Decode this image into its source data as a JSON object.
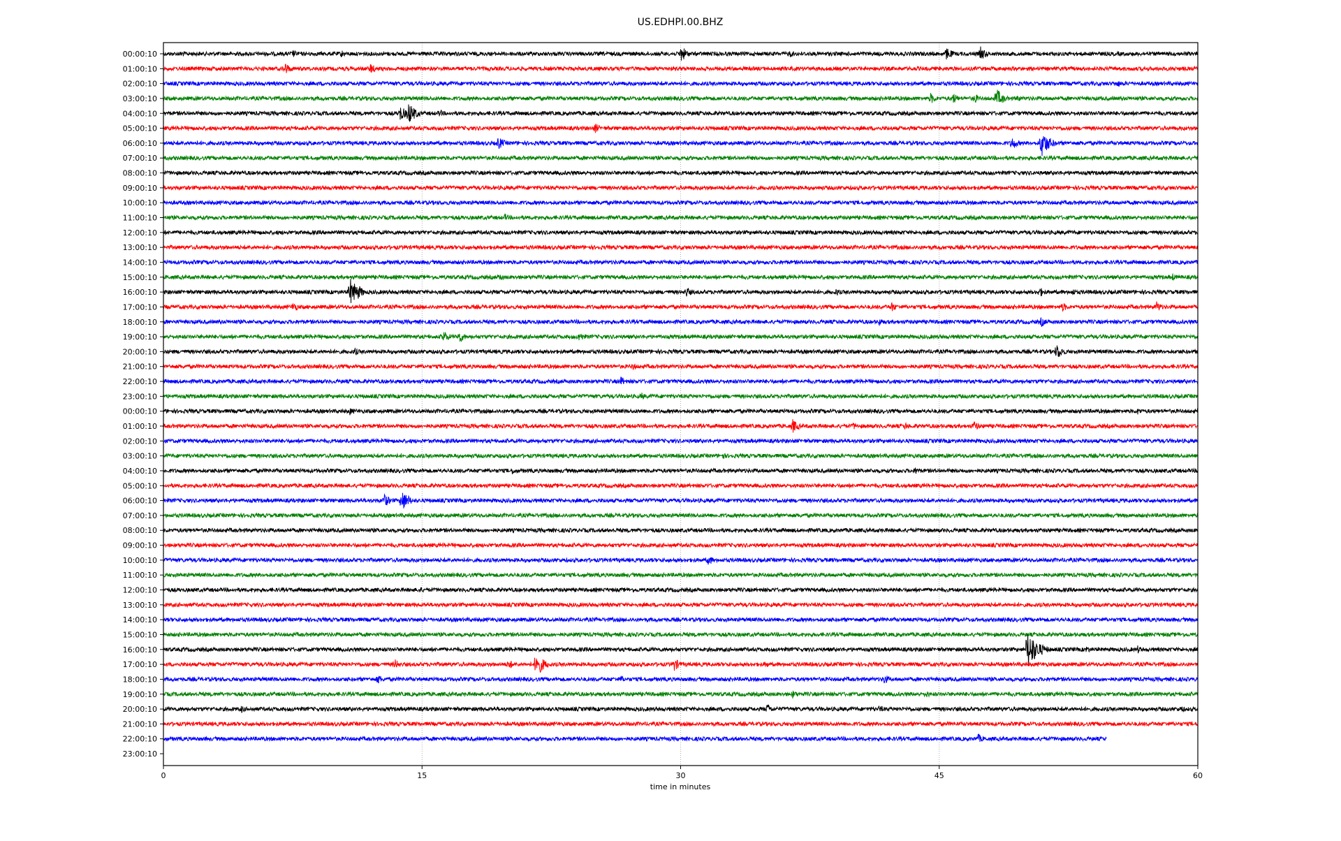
{
  "chart_data": {
    "type": "line",
    "title": "US.EDHPI.00.BHZ",
    "xlabel": "time in minutes",
    "ylabel": "",
    "xlim": [
      0,
      60
    ],
    "xticks": [
      "0",
      "15",
      "30",
      "45",
      "60"
    ],
    "xtick_values": [
      0,
      15,
      30,
      45,
      60
    ],
    "grid": "vertical dotted at 15, 30, 45",
    "colors": [
      "#000000",
      "#ff0000",
      "#0000ff",
      "#008000"
    ],
    "row_labels": [
      "00:00:10",
      "01:00:10",
      "02:00:10",
      "03:00:10",
      "04:00:10",
      "05:00:10",
      "06:00:10",
      "07:00:10",
      "08:00:10",
      "09:00:10",
      "10:00:10",
      "11:00:10",
      "12:00:10",
      "13:00:10",
      "14:00:10",
      "15:00:10",
      "16:00:10",
      "17:00:10",
      "18:00:10",
      "19:00:10",
      "20:00:10",
      "21:00:10",
      "22:00:10",
      "23:00:10",
      "00:00:10",
      "01:00:10",
      "02:00:10",
      "03:00:10",
      "04:00:10",
      "05:00:10",
      "06:00:10",
      "07:00:10",
      "08:00:10",
      "09:00:10",
      "10:00:10",
      "11:00:10",
      "12:00:10",
      "13:00:10",
      "14:00:10",
      "15:00:10",
      "16:00:10",
      "17:00:10",
      "18:00:10",
      "19:00:10",
      "20:00:10",
      "21:00:10",
      "22:00:10",
      "23:00:10"
    ],
    "last_trace_end_minute": 54.7,
    "events": {
      "0": [
        [
          1,
          0.3
        ],
        [
          7.5,
          0.3
        ],
        [
          10.3,
          0.3
        ],
        [
          30,
          0.6
        ],
        [
          36.3,
          0.3
        ],
        [
          45.4,
          0.5
        ],
        [
          47.4,
          0.5
        ]
      ],
      "1": [
        [
          7,
          0.5
        ],
        [
          12,
          0.4
        ]
      ],
      "2": [
        [
          55.3,
          0.3
        ]
      ],
      "3": [
        [
          44.5,
          0.4
        ],
        [
          45.8,
          0.4
        ],
        [
          47,
          0.4
        ],
        [
          48.3,
          0.7
        ],
        [
          49.5,
          0.3
        ]
      ],
      "4": [
        [
          13.7,
          0.6
        ],
        [
          14.2,
          0.8
        ],
        [
          16,
          0.3
        ]
      ],
      "5": [
        [
          25,
          0.4
        ]
      ],
      "6": [
        [
          19.4,
          0.5
        ],
        [
          49.2,
          0.5
        ],
        [
          50.9,
          1.0
        ]
      ],
      "11": [
        [
          19.8,
          0.3
        ]
      ],
      "15": [
        [
          19.5,
          0.3
        ],
        [
          58.5,
          0.3
        ]
      ],
      "16": [
        [
          10.8,
          1.0
        ],
        [
          11.3,
          0.5
        ],
        [
          30.3,
          0.4
        ],
        [
          39,
          0.3
        ],
        [
          50.8,
          0.4
        ],
        [
          52.7,
          0.3
        ]
      ],
      "17": [
        [
          7.5,
          0.4
        ],
        [
          42.2,
          0.4
        ],
        [
          52.1,
          0.4
        ],
        [
          57.6,
          0.4
        ]
      ],
      "18": [
        [
          41.5,
          0.3
        ],
        [
          50.9,
          0.4
        ]
      ],
      "19": [
        [
          16.2,
          0.5
        ],
        [
          17.1,
          0.5
        ],
        [
          24.1,
          0.4
        ]
      ],
      "20": [
        [
          11.1,
          0.3
        ],
        [
          51.8,
          0.6
        ]
      ],
      "21": [
        [
          27.2,
          0.3
        ]
      ],
      "22": [
        [
          26.5,
          0.4
        ]
      ],
      "23": [
        [
          27.7,
          0.3
        ]
      ],
      "24": [
        [
          10.8,
          0.3
        ],
        [
          56.5,
          0.3
        ]
      ],
      "25": [
        [
          36.5,
          0.5
        ],
        [
          40,
          0.3
        ],
        [
          43,
          0.3
        ],
        [
          47,
          0.4
        ]
      ],
      "27": [
        [
          32.4,
          0.3
        ]
      ],
      "28": [
        [
          20.2,
          0.3
        ],
        [
          43.6,
          0.3
        ]
      ],
      "30": [
        [
          12.8,
          0.5
        ],
        [
          13.8,
          0.8
        ]
      ],
      "34": [
        [
          31.6,
          0.4
        ]
      ],
      "36": [
        [
          14.8,
          0.3
        ]
      ],
      "40": [
        [
          50.1,
          1.4
        ],
        [
          53.5,
          0.3
        ],
        [
          56.5,
          0.3
        ]
      ],
      "41": [
        [
          13.4,
          0.4
        ],
        [
          20,
          0.4
        ],
        [
          21.6,
          0.9
        ],
        [
          29.6,
          0.5
        ],
        [
          34.9,
          0.3
        ]
      ],
      "42": [
        [
          12.4,
          0.4
        ],
        [
          26.5,
          0.3
        ],
        [
          41.8,
          0.4
        ]
      ],
      "43": [
        [
          36.5,
          0.3
        ],
        [
          44.2,
          0.3
        ]
      ],
      "44": [
        [
          4.5,
          0.3
        ],
        [
          35,
          0.4
        ],
        [
          41.5,
          0.3
        ],
        [
          59,
          0.3
        ]
      ],
      "46": [
        [
          47.2,
          0.4
        ]
      ]
    }
  }
}
